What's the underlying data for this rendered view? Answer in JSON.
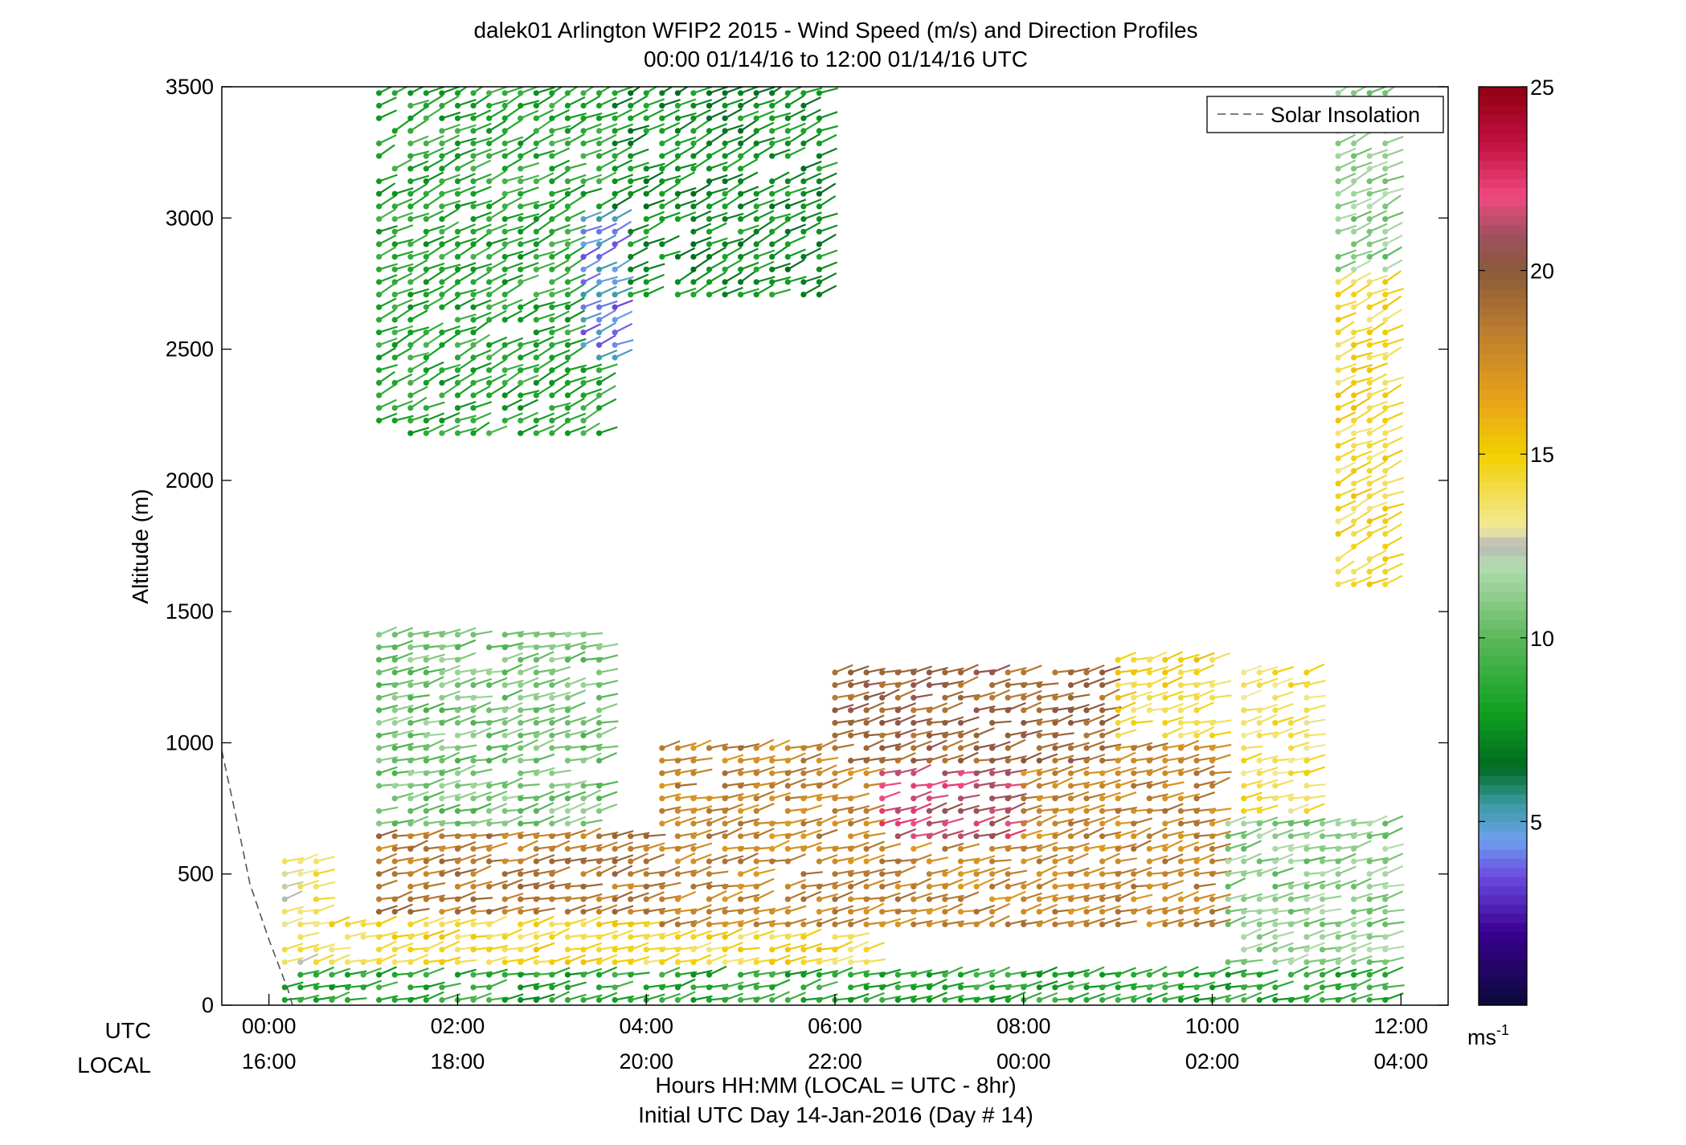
{
  "chart_data": {
    "type": "scatter",
    "title": "dalek01 Arlington WFIP2 2015 - Wind Speed (m/s) and Direction Profiles",
    "subtitle": "00:00 01/14/16 to 12:00 01/14/16  UTC",
    "ylabel": "Altitude (m)",
    "xlabel": "Hours HH:MM  (LOCAL = UTC - 8hr)",
    "xlabel2": "Initial UTC Day 14-Jan-2016 (Day # 14)",
    "ylim": [
      0,
      3500
    ],
    "xlim_hours_utc": [
      -0.5,
      12.5
    ],
    "y_ticks": [
      "0",
      "500",
      "1000",
      "1500",
      "2000",
      "2500",
      "3000",
      "3500"
    ],
    "y_tick_values": [
      0,
      500,
      1000,
      1500,
      2000,
      2500,
      3000,
      3500
    ],
    "x_row_labels": {
      "utc": "UTC",
      "local": "LOCAL"
    },
    "x_tick_values_utc_hours": [
      0,
      2,
      4,
      6,
      8,
      10,
      12
    ],
    "x_ticks_utc": [
      "00:00",
      "02:00",
      "04:00",
      "06:00",
      "08:00",
      "10:00",
      "12:00"
    ],
    "x_ticks_local": [
      "16:00",
      "18:00",
      "20:00",
      "22:00",
      "00:00",
      "02:00",
      "04:00"
    ],
    "legend": {
      "entries": [
        "Solar Insolation"
      ],
      "placement": "top-right"
    },
    "colorbar": {
      "range": [
        0,
        25
      ],
      "ticks": [
        "5",
        "10",
        "15",
        "20",
        "25"
      ],
      "tick_values": [
        5,
        10,
        15,
        20,
        25
      ],
      "unit_base": "ms",
      "unit_exp": "-1",
      "stops": [
        {
          "v": 0,
          "color": "#0a0a3a"
        },
        {
          "v": 2,
          "color": "#3a0090"
        },
        {
          "v": 3.5,
          "color": "#6a4adf"
        },
        {
          "v": 4.5,
          "color": "#6fa0f0"
        },
        {
          "v": 5.5,
          "color": "#3a9aa0"
        },
        {
          "v": 6.5,
          "color": "#006a20"
        },
        {
          "v": 8,
          "color": "#10a020"
        },
        {
          "v": 10,
          "color": "#5cb85c"
        },
        {
          "v": 12,
          "color": "#b5ddb0"
        },
        {
          "v": 12.5,
          "color": "#b8b8b8"
        },
        {
          "v": 13,
          "color": "#f2ea9a"
        },
        {
          "v": 15,
          "color": "#f2cf00"
        },
        {
          "v": 16.5,
          "color": "#e8a21a"
        },
        {
          "v": 18.5,
          "color": "#b87a30"
        },
        {
          "v": 20,
          "color": "#8a5a3a"
        },
        {
          "v": 21,
          "color": "#a05060"
        },
        {
          "v": 22,
          "color": "#f04a80"
        },
        {
          "v": 23.5,
          "color": "#c01040"
        },
        {
          "v": 25,
          "color": "#900010"
        }
      ]
    },
    "solar_insolation_line": [
      [
        -0.5,
        970
      ],
      [
        -0.35,
        720
      ],
      [
        -0.2,
        460
      ],
      [
        0,
        250
      ],
      [
        0.2,
        60
      ],
      [
        0.25,
        0
      ]
    ],
    "profile_times_utc_hours": "every 10 minutes, 00:10 to 11:50",
    "vector_regions": [
      {
        "t": [
          0.0,
          0.6
        ],
        "h": [
          0,
          560
        ],
        "speed": 13.5
      },
      {
        "t": [
          0.0,
          0.5
        ],
        "h": [
          0,
          150
        ],
        "speed": 8
      },
      {
        "t": [
          0.6,
          11.9
        ],
        "h": [
          0,
          130
        ],
        "speed": 8.5
      },
      {
        "t": [
          0.6,
          6.5
        ],
        "h": [
          130,
          320
        ],
        "speed": 14.5
      },
      {
        "t": [
          1.0,
          4.0
        ],
        "h": [
          320,
          660
        ],
        "speed": 18.5
      },
      {
        "t": [
          4.0,
          10.0
        ],
        "h": [
          300,
          1000
        ],
        "speed": 18
      },
      {
        "t": [
          6.5,
          8.0
        ],
        "h": [
          600,
          900
        ],
        "speed": 21.5
      },
      {
        "t": [
          6.0,
          9.0
        ],
        "h": [
          900,
          1300
        ],
        "speed": 19.5
      },
      {
        "t": [
          9.0,
          10.0
        ],
        "h": [
          1000,
          1350
        ],
        "speed": 14.5
      },
      {
        "t": [
          10.0,
          11.9
        ],
        "h": [
          130,
          700
        ],
        "speed": 11
      },
      {
        "t": [
          10.2,
          11.0
        ],
        "h": [
          700,
          1300
        ],
        "speed": 14
      },
      {
        "t": [
          1.0,
          3.6
        ],
        "h": [
          660,
          1450
        ],
        "speed": 10.5
      },
      {
        "t": [
          1.0,
          3.6
        ],
        "h": [
          2150,
          3480
        ],
        "speed": 8.5
      },
      {
        "t": [
          3.6,
          6.0
        ],
        "h": [
          2700,
          3480
        ],
        "speed": 7.5
      },
      {
        "t": [
          3.2,
          3.8
        ],
        "h": [
          2450,
          3000
        ],
        "speed": 4.5
      },
      {
        "t": [
          11.3,
          11.9
        ],
        "h": [
          1600,
          2800
        ],
        "speed": 14.5
      },
      {
        "t": [
          11.3,
          11.9
        ],
        "h": [
          2800,
          3480
        ],
        "speed": 11
      }
    ]
  }
}
